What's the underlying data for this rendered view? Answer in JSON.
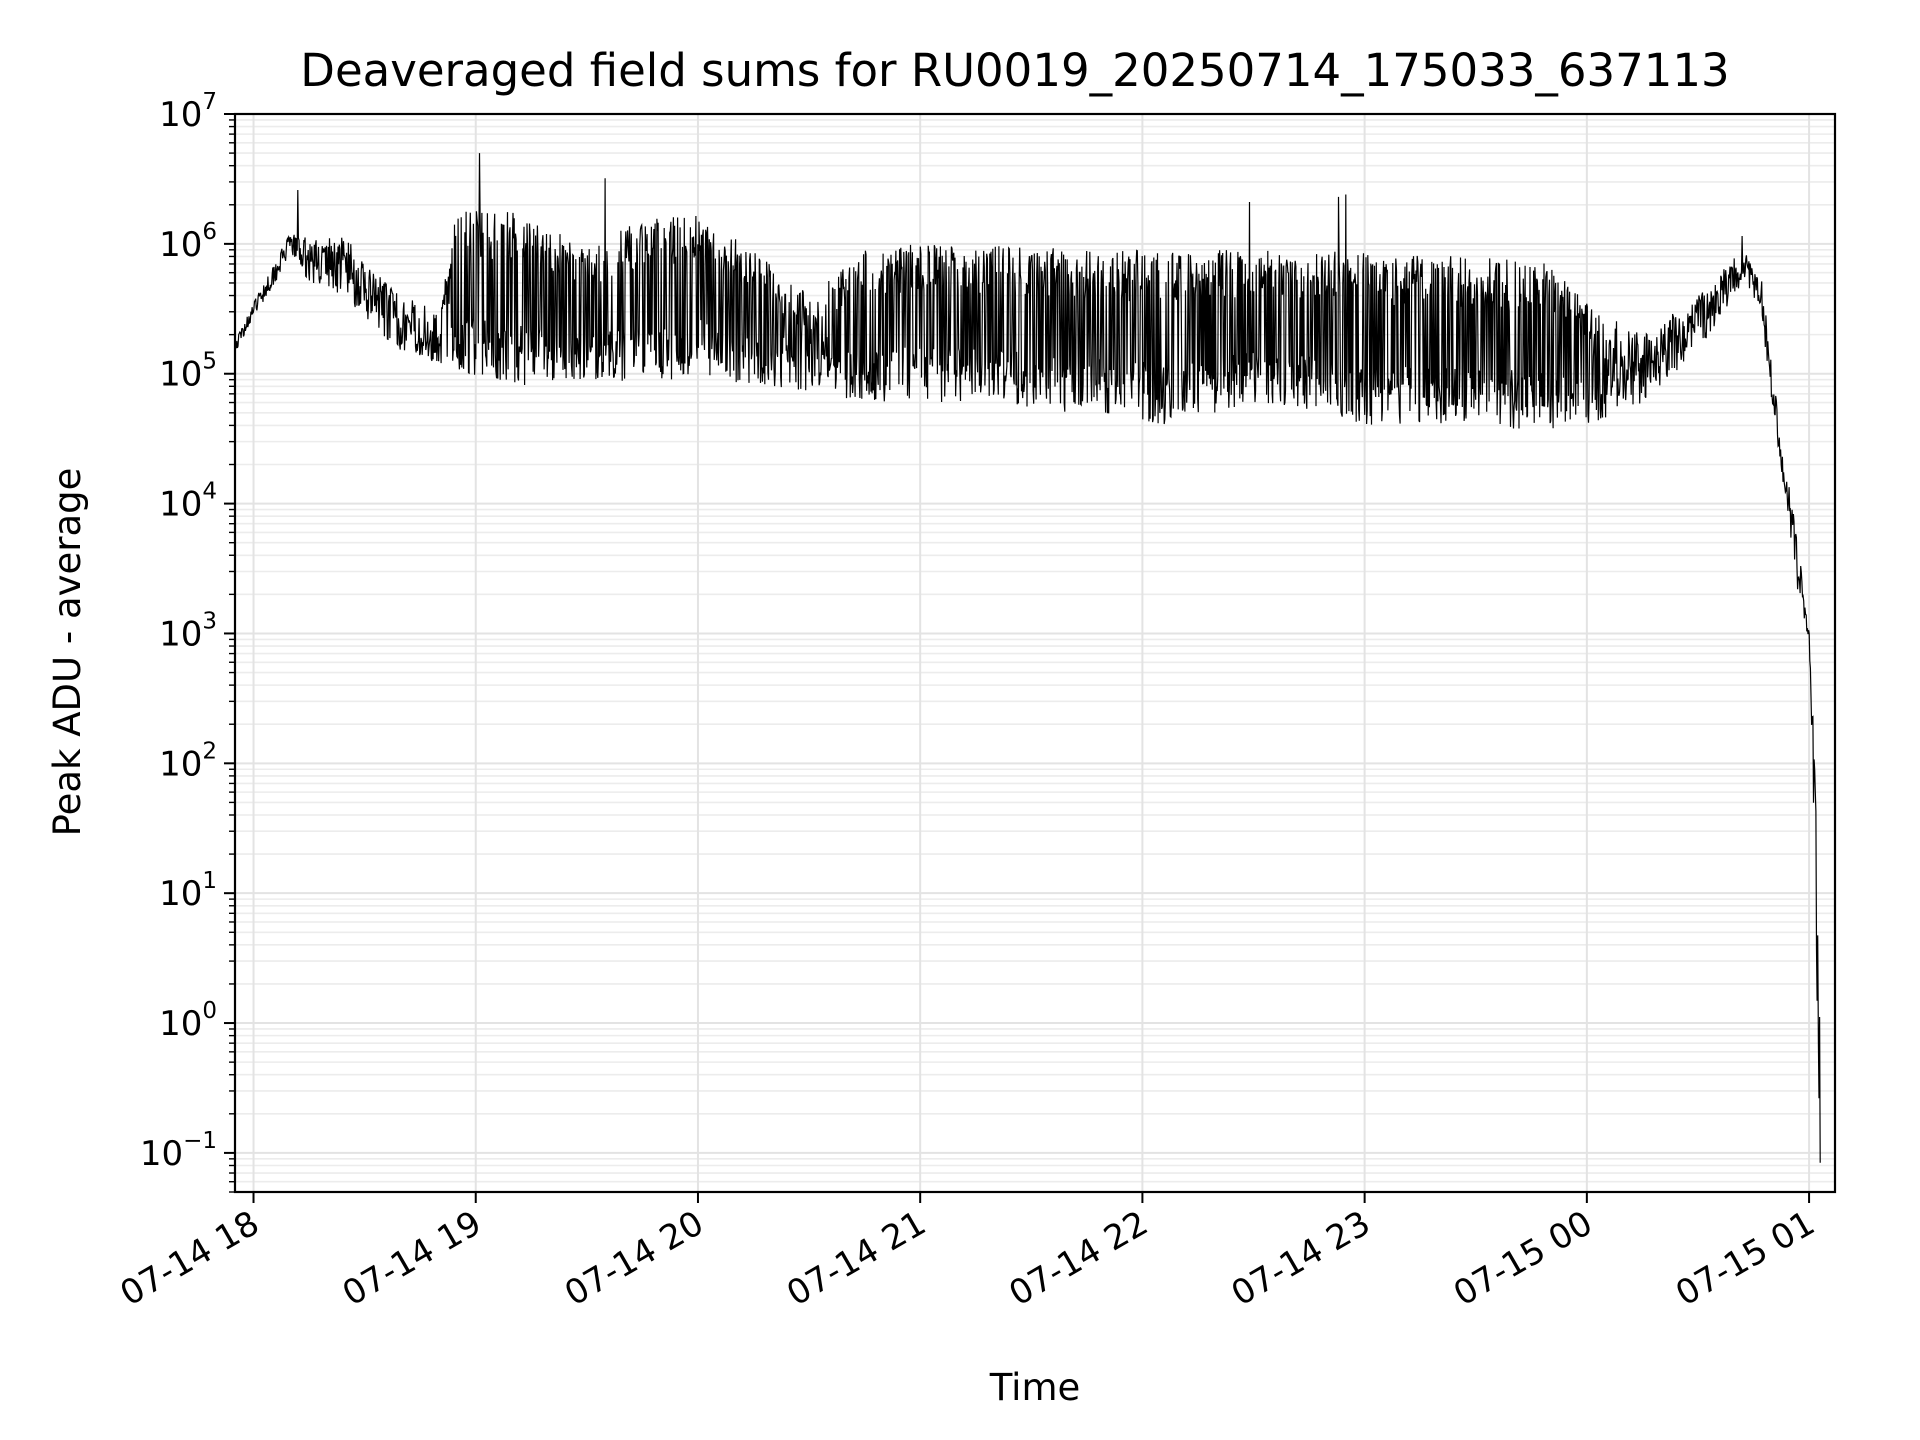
{
  "chart_data": {
    "type": "line",
    "title": "Deaveraged field sums for RU0019_20250714_175033_637113",
    "xlabel": "Time",
    "ylabel": "Peak ADU - average",
    "y_scale": "log",
    "ylim": [
      0.05,
      10000000
    ],
    "xlim": [
      "2025-07-14 17:55",
      "2025-07-15 01:07"
    ],
    "grid": true,
    "x_ticks": [
      "07-14 18",
      "07-14 19",
      "07-14 20",
      "07-14 21",
      "07-14 22",
      "07-14 23",
      "07-15 00",
      "07-15 01"
    ],
    "y_ticks": [
      {
        "base": "10",
        "exp": "−1"
      },
      {
        "base": "10",
        "exp": "0"
      },
      {
        "base": "10",
        "exp": "1"
      },
      {
        "base": "10",
        "exp": "2"
      },
      {
        "base": "10",
        "exp": "3"
      },
      {
        "base": "10",
        "exp": "4"
      },
      {
        "base": "10",
        "exp": "5"
      },
      {
        "base": "10",
        "exp": "6"
      },
      {
        "base": "10",
        "exp": "7"
      }
    ],
    "series": [
      {
        "color": "#000000",
        "envelope_points": [
          {
            "t": "2025-07-14 17:55",
            "low": 140000,
            "high": 180000
          },
          {
            "t": "2025-07-14 18:00",
            "low": 280000,
            "high": 350000
          },
          {
            "t": "2025-07-14 18:05",
            "low": 450000,
            "high": 700000
          },
          {
            "t": "2025-07-14 18:10",
            "low": 850000,
            "high": 1200000
          },
          {
            "t": "2025-07-14 18:15",
            "low": 500000,
            "high": 1100000
          },
          {
            "t": "2025-07-14 18:25",
            "low": 400000,
            "high": 1200000
          },
          {
            "t": "2025-07-14 18:30",
            "low": 250000,
            "high": 700000
          },
          {
            "t": "2025-07-14 18:40",
            "low": 150000,
            "high": 400000
          },
          {
            "t": "2025-07-14 18:50",
            "low": 120000,
            "high": 300000
          },
          {
            "t": "2025-07-14 18:55",
            "low": 100000,
            "high": 1900000
          },
          {
            "t": "2025-07-14 19:15",
            "low": 80000,
            "high": 1700000
          },
          {
            "t": "2025-07-14 19:30",
            "low": 90000,
            "high": 900000
          },
          {
            "t": "2025-07-14 19:45",
            "low": 80000,
            "high": 1600000
          },
          {
            "t": "2025-07-14 20:00",
            "low": 100000,
            "high": 1700000
          },
          {
            "t": "2025-07-14 20:15",
            "low": 80000,
            "high": 900000
          },
          {
            "t": "2025-07-14 20:30",
            "low": 70000,
            "high": 400000
          },
          {
            "t": "2025-07-14 20:45",
            "low": 60000,
            "high": 900000
          },
          {
            "t": "2025-07-14 21:00",
            "low": 60000,
            "high": 1000000
          },
          {
            "t": "2025-07-14 21:30",
            "low": 55000,
            "high": 950000
          },
          {
            "t": "2025-07-14 21:50",
            "low": 45000,
            "high": 900000
          },
          {
            "t": "2025-07-14 22:10",
            "low": 40000,
            "high": 900000
          },
          {
            "t": "2025-07-14 22:30",
            "low": 60000,
            "high": 900000
          },
          {
            "t": "2025-07-14 22:50",
            "low": 50000,
            "high": 900000
          },
          {
            "t": "2025-07-14 23:00",
            "low": 40000,
            "high": 850000
          },
          {
            "t": "2025-07-14 23:30",
            "low": 40000,
            "high": 800000
          },
          {
            "t": "2025-07-14 23:50",
            "low": 35000,
            "high": 700000
          },
          {
            "t": "2025-07-15 00:00",
            "low": 40000,
            "high": 350000
          },
          {
            "t": "2025-07-15 00:15",
            "low": 60000,
            "high": 200000
          },
          {
            "t": "2025-07-15 00:30",
            "low": 150000,
            "high": 400000
          },
          {
            "t": "2025-07-15 00:42",
            "low": 500000,
            "high": 900000
          },
          {
            "t": "2025-07-15 00:47",
            "low": 300000,
            "high": 600000
          },
          {
            "t": "2025-07-15 00:52",
            "low": 20000,
            "high": 40000
          },
          {
            "t": "2025-07-15 00:55",
            "low": 5000,
            "high": 12000
          },
          {
            "t": "2025-07-15 00:58",
            "low": 1200,
            "high": 3000
          },
          {
            "t": "2025-07-15 01:00",
            "low": 900,
            "high": 1100
          },
          {
            "t": "2025-07-15 01:01",
            "low": 100,
            "high": 500
          },
          {
            "t": "2025-07-15 01:02",
            "low": 1,
            "high": 50
          },
          {
            "t": "2025-07-15 01:03",
            "low": 0.05,
            "high": 1
          }
        ],
        "spikes": [
          {
            "t": "2025-07-14 18:12",
            "value": 2600000
          },
          {
            "t": "2025-07-14 19:01",
            "value": 5000000
          },
          {
            "t": "2025-07-14 19:35",
            "value": 3200000
          },
          {
            "t": "2025-07-14 22:29",
            "value": 2100000
          },
          {
            "t": "2025-07-14 22:53",
            "value": 2300000
          },
          {
            "t": "2025-07-14 22:55",
            "value": 2400000
          },
          {
            "t": "2025-07-15 00:42",
            "value": 1150000
          }
        ]
      }
    ]
  }
}
